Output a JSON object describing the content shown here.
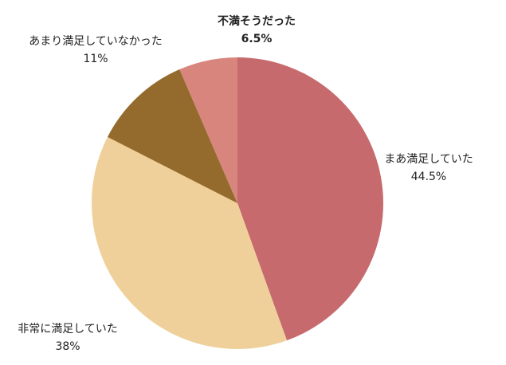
{
  "chart_data": {
    "type": "pie",
    "categories": [
      "まあ満足していた",
      "非常に満足していた",
      "あまり満足していなかった",
      "不満そうだった"
    ],
    "values": [
      44.5,
      38,
      11,
      6.5
    ],
    "value_labels": [
      "44.5%",
      "38%",
      "11%",
      "6.5%"
    ],
    "colors": [
      "#c76a6e",
      "#efd09a",
      "#946b2d",
      "#d8857e"
    ]
  }
}
